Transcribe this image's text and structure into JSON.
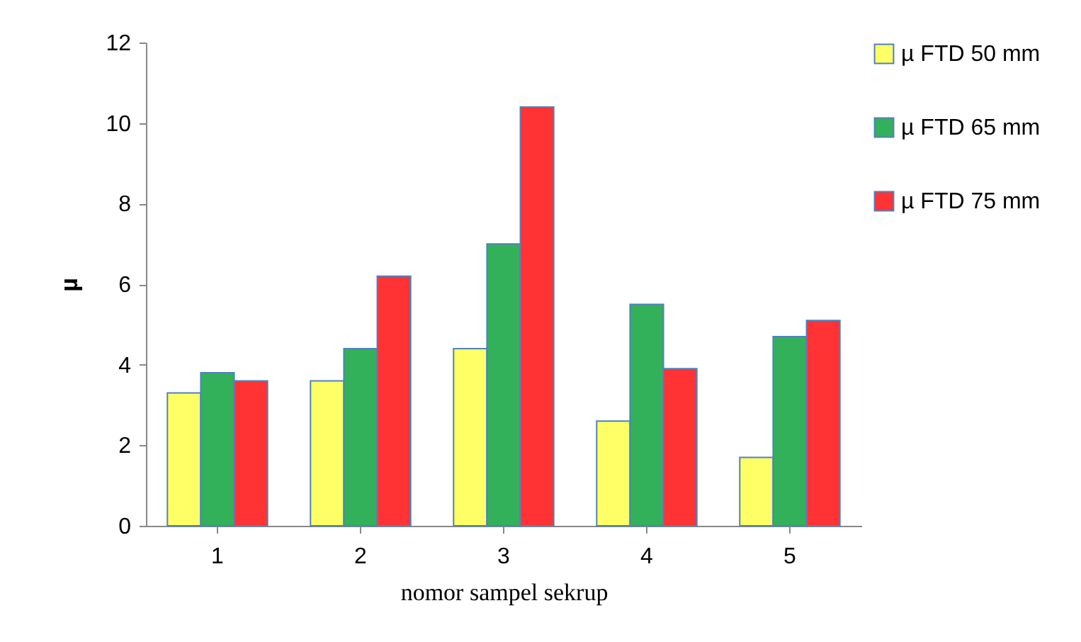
{
  "chart_data": {
    "type": "bar",
    "xlabel": "nomor sampel sekrup",
    "ylabel": "µ",
    "categories": [
      "1",
      "2",
      "3",
      "4",
      "5"
    ],
    "series": [
      {
        "name": "µ FTD 50 mm",
        "color": "#ffff66",
        "values": [
          3.3,
          3.6,
          4.4,
          2.6,
          1.7
        ]
      },
      {
        "name": "µ FTD 65 mm",
        "color": "#33b05a",
        "values": [
          3.8,
          4.4,
          7.0,
          5.5,
          4.7
        ]
      },
      {
        "name": "µ FTD 75 mm",
        "color": "#ff3333",
        "values": [
          3.6,
          6.2,
          10.4,
          3.9,
          5.1
        ]
      }
    ],
    "ylim": [
      0,
      12
    ],
    "yticks": [
      0,
      2,
      4,
      6,
      8,
      10,
      12
    ],
    "grid": false,
    "legend": "right"
  }
}
